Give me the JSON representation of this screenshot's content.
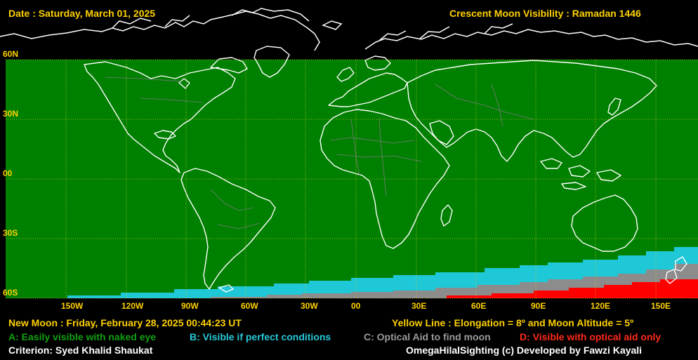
{
  "header": {
    "date": "Date : Saturday, March 01, 2025",
    "title": "Crescent Moon Visibility : Ramadan  1446"
  },
  "map": {
    "lat_labels": [
      "60N",
      "30N",
      "00",
      "30S",
      "60S"
    ],
    "lon_labels": [
      "150W",
      "120W",
      "90W",
      "60W",
      "30W",
      "00",
      "30E",
      "60E",
      "90E",
      "120E",
      "150E"
    ],
    "colors": {
      "zone_a": "#008000",
      "zone_b": "#1fc8d6",
      "zone_c": "#8c8c8c",
      "zone_d": "#ff0000",
      "grid": "#c8c832",
      "coast": "#ffffff"
    }
  },
  "footer": {
    "new_moon": "New Moon : Friday, February 28, 2025  00:44:23  UT",
    "yellow_line": "Yellow Line : Elongation = 8º  and Moon Altitude = 5º",
    "legend_a": "A: Easily visible with naked eye",
    "legend_b": "B: Visible if perfect conditions",
    "legend_c": "C: Optical Aid to find moon",
    "legend_d": "D: Visible with optical aid only",
    "criterion": "Criterion: Syed Khalid Shaukat",
    "credit": "OmegaHilalSighting  (c)  Developed by Fawzi Kayali"
  }
}
